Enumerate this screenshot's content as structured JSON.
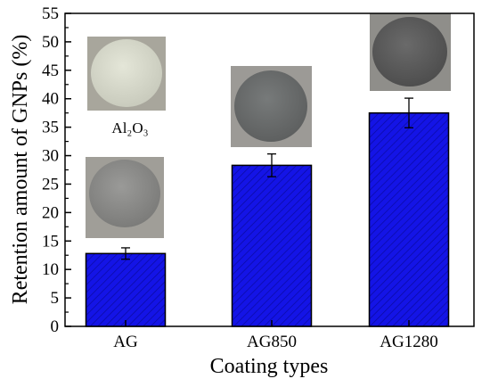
{
  "chart_data": {
    "type": "bar",
    "categories": [
      "AG",
      "AG850",
      "AG1280"
    ],
    "values": [
      12.8,
      28.3,
      37.5
    ],
    "errors": [
      1.0,
      2.0,
      2.6
    ],
    "xlabel": "Coating types",
    "ylabel": "Retention amount of GNPs (%)",
    "ylim": [
      0,
      55
    ],
    "yticks": [
      0,
      5,
      10,
      15,
      20,
      25,
      30,
      35,
      40,
      45,
      50,
      55
    ],
    "bar_color": "#1010e8",
    "grid": false,
    "annotations": [
      {
        "text": "Al₂O₃",
        "kind": "photo-caption"
      }
    ],
    "photos": [
      "light-gray-disc",
      "gray-disc",
      "dark-gray-disc",
      "darkest-gray-disc"
    ]
  }
}
